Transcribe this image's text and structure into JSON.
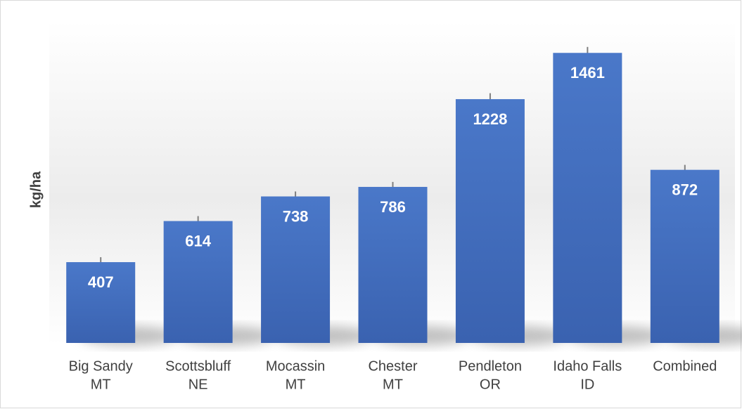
{
  "chart_data": {
    "type": "bar",
    "y_label": "kg/ha",
    "categories": [
      [
        "Big Sandy",
        "MT"
      ],
      [
        "Scottsbluff",
        "NE"
      ],
      [
        "Mocassin",
        "MT"
      ],
      [
        "Chester",
        "MT"
      ],
      [
        "Pendleton",
        "OR"
      ],
      [
        "Idaho Falls",
        "ID"
      ],
      [
        "Combined"
      ]
    ],
    "values": [
      407,
      614,
      738,
      786,
      1228,
      1461,
      872
    ],
    "errors": [
      25,
      25,
      25,
      25,
      30,
      30,
      25
    ],
    "color": "#4472c4",
    "ylim": [
      0,
      1600
    ]
  }
}
